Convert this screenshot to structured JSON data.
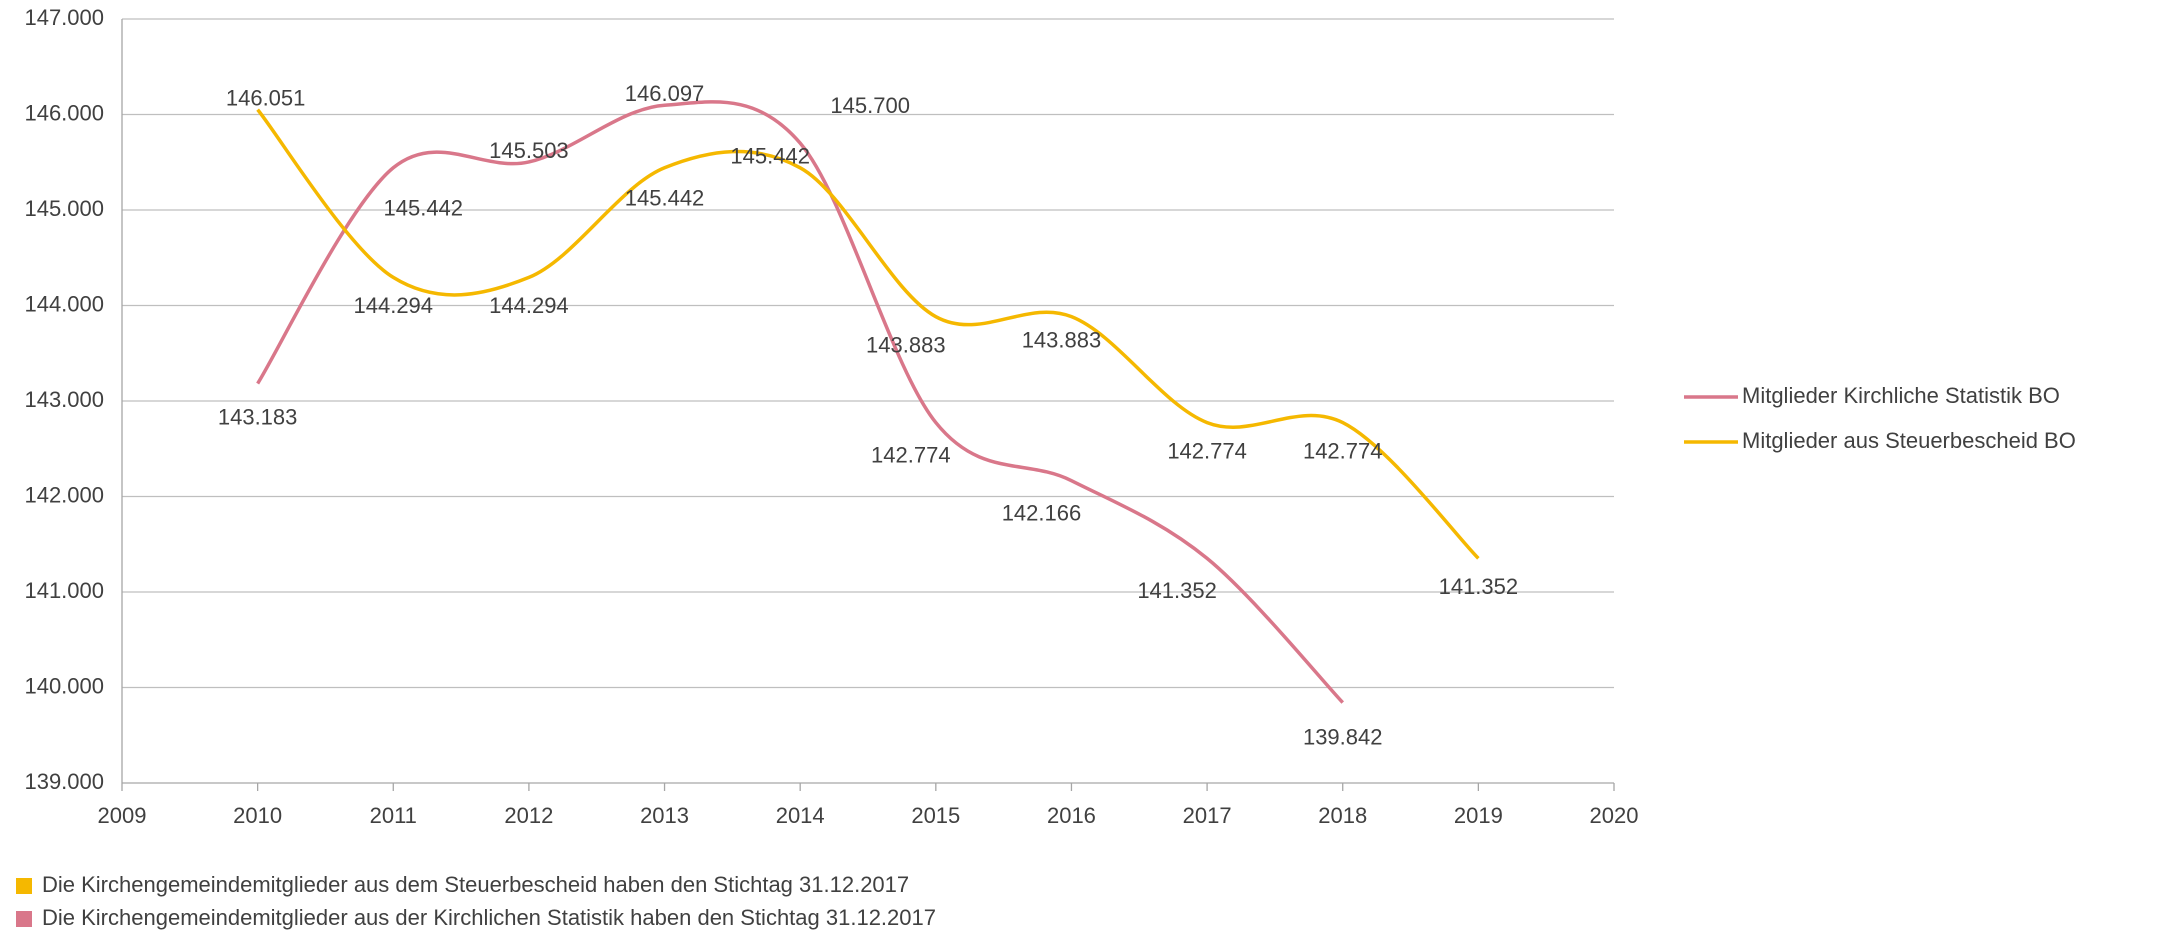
{
  "chart_data": {
    "type": "line",
    "x": [
      2010,
      2011,
      2012,
      2013,
      2014,
      2015,
      2016,
      2017,
      2018,
      2019
    ],
    "series": [
      {
        "name": "Mitglieder Kirchliche Statistik BO",
        "color": "#d9778a",
        "values": [
          143183,
          145442,
          145503,
          146097,
          145700,
          142774,
          142166,
          141352,
          139842,
          null
        ],
        "value_labels": [
          "143.183",
          "145.442",
          "145.503",
          "146.097",
          "145.700",
          "142.774",
          "142.166",
          "141.352",
          "139.842",
          null
        ]
      },
      {
        "name": "Mitglieder aus Steuerbescheid BO",
        "color": "#f5b800",
        "values": [
          146051,
          144294,
          144294,
          145442,
          145442,
          143883,
          143883,
          142774,
          142774,
          141352
        ],
        "value_labels": [
          "146.051",
          "144.294",
          "144.294",
          "145.442",
          "145.442",
          "143.883",
          "143.883",
          "142.774",
          "142.774",
          "141.352"
        ]
      }
    ],
    "xlim": [
      2009,
      2020
    ],
    "xticks": [
      2009,
      2010,
      2011,
      2012,
      2013,
      2014,
      2015,
      2016,
      2017,
      2018,
      2019,
      2020
    ],
    "ylim": [
      139000,
      147000
    ],
    "yticks": [
      {
        "value": 139000,
        "label": "139.000"
      },
      {
        "value": 140000,
        "label": "140.000"
      },
      {
        "value": 141000,
        "label": "141.000"
      },
      {
        "value": 142000,
        "label": "142.000"
      },
      {
        "value": 143000,
        "label": "143.000"
      },
      {
        "value": 144000,
        "label": "144.000"
      },
      {
        "value": 145000,
        "label": "145.000"
      },
      {
        "value": 146000,
        "label": "146.000"
      },
      {
        "value": 147000,
        "label": "147.000"
      }
    ],
    "grid": true,
    "legend": "right",
    "notes": [
      {
        "text": "Die Kirchengemeindemitglieder aus dem Steuerbescheid haben den Stichtag 31.12.2017",
        "color": "#f5b800"
      },
      {
        "text": "Die Kirchengemeindemitglieder aus der Kirchlichen Statistik haben den Stichtag 31.12.2017",
        "color": "#d9778a"
      }
    ]
  }
}
